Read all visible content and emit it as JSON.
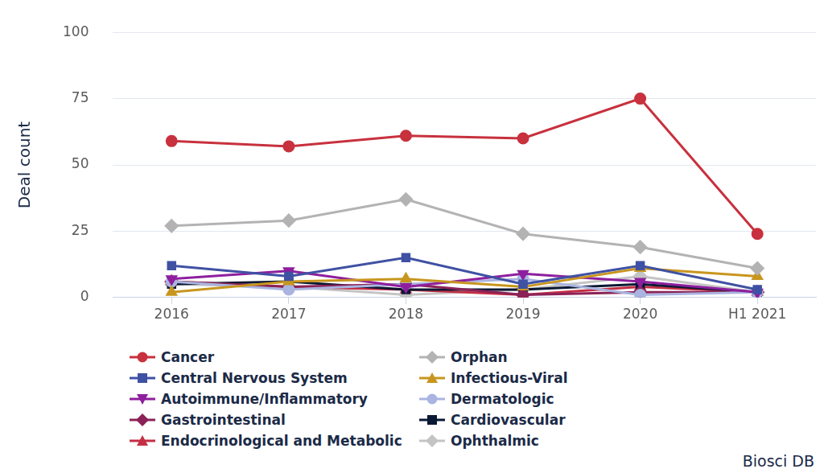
{
  "chart_data": {
    "type": "line",
    "y_label": "Deal count",
    "annotations": [
      "Biosci DB"
    ],
    "categories": [
      "2016",
      "2017",
      "2018",
      "2019",
      "2020",
      "H1 2021"
    ],
    "series": [
      {
        "name": "Cancer",
        "color": "#c8313e",
        "marker": "circle",
        "values": [
          59,
          57,
          61,
          60,
          75,
          24
        ]
      },
      {
        "name": "Orphan",
        "color": "#b3b3b3",
        "marker": "diamond",
        "values": [
          27,
          29,
          37,
          24,
          19,
          11
        ]
      },
      {
        "name": "Central Nervous System",
        "color": "#3f51a3",
        "marker": "square",
        "values": [
          12,
          8,
          15,
          5,
          12,
          3
        ]
      },
      {
        "name": "Infectious-Viral",
        "color": "#c8961e",
        "marker": "triangle",
        "values": [
          2,
          6,
          7,
          4,
          11,
          8
        ]
      },
      {
        "name": "Autoimmune/Inflammatory",
        "color": "#8e1f9e",
        "marker": "triangle-down",
        "values": [
          7,
          10,
          4,
          9,
          6,
          2
        ]
      },
      {
        "name": "Dermatologic",
        "color": "#a9b4e0",
        "marker": "circle",
        "values": [
          6,
          3,
          5,
          7,
          1,
          2
        ]
      },
      {
        "name": "Gastrointestinal",
        "color": "#8b2257",
        "marker": "diamond",
        "values": [
          6,
          4,
          5,
          1,
          2,
          2
        ]
      },
      {
        "name": "Cardiovascular",
        "color": "#0b1833",
        "marker": "square",
        "values": [
          5,
          6,
          3,
          3,
          5,
          2
        ]
      },
      {
        "name": "Endocrinological and Metabolic",
        "color": "#c42f45",
        "marker": "triangle",
        "values": [
          6,
          4,
          3,
          1,
          4,
          2
        ]
      },
      {
        "name": "Ophthalmic",
        "color": "#c4c4c4",
        "marker": "diamond",
        "values": [
          5,
          4,
          1,
          3,
          8,
          2
        ]
      }
    ],
    "ylim": [
      0,
      100
    ],
    "yticks": [
      0,
      25,
      50,
      75,
      100
    ],
    "grid": true,
    "legend": "bottom"
  }
}
